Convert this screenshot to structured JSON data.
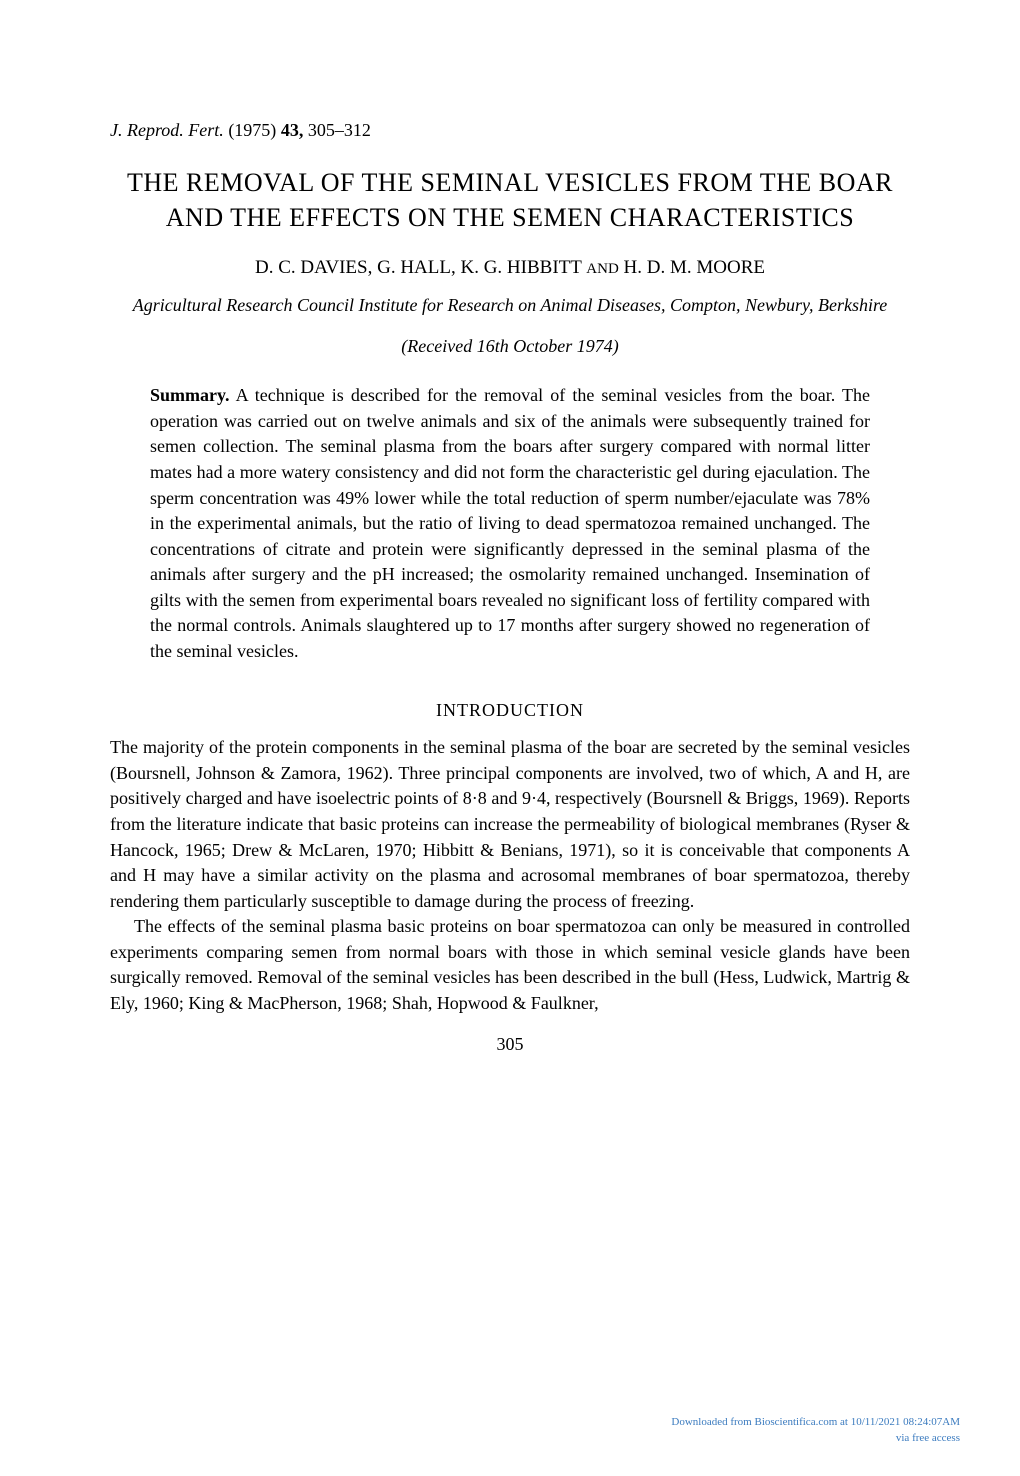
{
  "journal": {
    "abbrev": "J. Reprod. Fert.",
    "year": "(1975)",
    "volume": "43,",
    "pages": "305–312"
  },
  "title": "THE REMOVAL OF THE SEMINAL VESICLES FROM THE BOAR AND THE EFFECTS ON THE SEMEN CHARACTERISTICS",
  "authors": "D. C. DAVIES, G. HALL, K. G. HIBBITT",
  "authors_and": "AND",
  "authors_last": "H. D. M. MOORE",
  "affiliation": "Agricultural Research Council Institute for Research on Animal Diseases, Compton, Newbury, Berkshire",
  "received": "(Received 16th October 1974)",
  "summary_label": "Summary.",
  "summary": "A technique is described for the removal of the seminal vesicles from the boar. The operation was carried out on twelve animals and six of the animals were subsequently trained for semen collection. The seminal plasma from the boars after surgery compared with normal litter mates had a more watery consistency and did not form the characteristic gel during ejaculation. The sperm concentration was 49% lower while the total reduction of sperm number/ejaculate was 78% in the experimental animals, but the ratio of living to dead spermatozoa remained unchanged. The concentrations of citrate and protein were significantly depressed in the seminal plasma of the animals after surgery and the pH increased; the osmolarity remained unchanged. Insemination of gilts with the semen from experimental boars revealed no significant loss of fertility compared with the normal controls. Animals slaughtered up to 17 months after surgery showed no regeneration of the seminal vesicles.",
  "introduction_heading": "INTRODUCTION",
  "intro_para1": "The majority of the protein components in the seminal plasma of the boar are secreted by the seminal vesicles (Boursnell, Johnson & Zamora, 1962). Three principal components are involved, two of which, A and H, are positively charged and have isoelectric points of 8·8 and 9·4, respectively (Boursnell & Briggs, 1969). Reports from the literature indicate that basic proteins can increase the permeability of biological membranes (Ryser & Hancock, 1965; Drew & McLaren, 1970; Hibbitt & Benians, 1971), so it is conceivable that components A and H may have a similar activity on the plasma and acrosomal membranes of boar spermatozoa, thereby rendering them particularly susceptible to damage during the process of freezing.",
  "intro_para2": "The effects of the seminal plasma basic proteins on boar spermatozoa can only be measured in controlled experiments comparing semen from normal boars with those in which seminal vesicle glands have been surgically removed. Removal of the seminal vesicles has been described in the bull (Hess, Ludwick, Martrig & Ely, 1960; King & MacPherson, 1968; Shah, Hopwood & Faulkner,",
  "page_number": "305",
  "footer_line1": "Downloaded from Bioscientifica.com at 10/11/2021 08:24:07AM",
  "footer_line2": "via free access",
  "colors": {
    "background": "#ffffff",
    "text": "#000000",
    "footer": "#3b7bbf"
  },
  "typography": {
    "body_fontsize": 18,
    "title_fontsize": 26,
    "footer_fontsize": 11,
    "font_family": "Georgia, Times New Roman, serif"
  }
}
